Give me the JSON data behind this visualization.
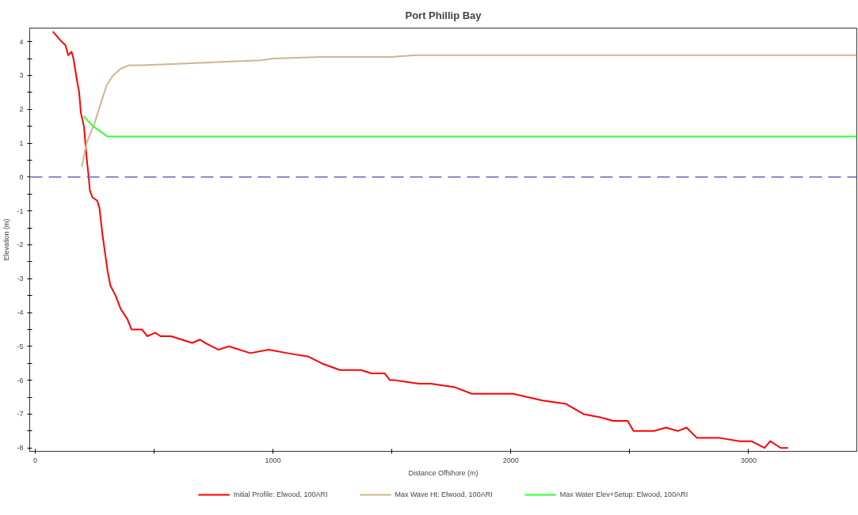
{
  "chart_data": {
    "type": "line",
    "title": "Port Phillip Bay",
    "xlabel": "Distance Offshore (m)",
    "ylabel": "Elevation (m)",
    "xlim": [
      -23,
      3455
    ],
    "ylim": [
      -8.1,
      4.4
    ],
    "xticks": [
      0,
      {
        "value": 500,
        "label": null
      },
      1000,
      {
        "value": 1500,
        "label": null
      },
      2000,
      {
        "value": 2500,
        "label": null
      },
      3000
    ],
    "yticks": [
      -8,
      {
        "value": -7.5,
        "label": null
      },
      -7,
      {
        "value": -6.5,
        "label": null
      },
      -6,
      {
        "value": -5.5,
        "label": null
      },
      -5,
      {
        "value": -4.5,
        "label": null
      },
      -4,
      {
        "value": -3.5,
        "label": null
      },
      -3,
      {
        "value": -2.5,
        "label": null
      },
      -2,
      {
        "value": -1.5,
        "label": null
      },
      -1,
      {
        "value": -0.5,
        "label": null
      },
      0,
      {
        "value": 0.5,
        "label": null
      },
      1,
      {
        "value": 1.5,
        "label": null
      },
      2,
      {
        "value": 2.5,
        "label": null
      },
      3,
      {
        "value": 3.5,
        "label": null
      },
      4
    ],
    "grid": false,
    "legend": "bottom",
    "marker": "none",
    "line_style": "solid",
    "ref_lines": [
      {
        "axis": "y",
        "value": 0,
        "label": null,
        "color": "#6666bb",
        "line_style": "dashed"
      }
    ],
    "series": [
      {
        "name": "Initial Profile: Elwood, 100ARI",
        "color": "#ff0000",
        "x": [
          74,
          111,
          127,
          139,
          153,
          161,
          177,
          185,
          192,
          205,
          216,
          225,
          230,
          241,
          261,
          270,
          283,
          305,
          316,
          338,
          360,
          388,
          405,
          449,
          471,
          505,
          527,
          571,
          616,
          660,
          693,
          715,
          771,
          815,
          904,
          982,
          1060,
          1148,
          1204,
          1281,
          1370,
          1414,
          1470,
          1492,
          1514,
          1614,
          1663,
          1761,
          1836,
          1910,
          2009,
          2133,
          2232,
          2306,
          2380,
          2430,
          2491,
          2516,
          2603,
          2652,
          2702,
          2739,
          2782,
          2875,
          2962,
          3011,
          3067,
          3091,
          3135,
          3166
        ],
        "values": [
          4.3,
          4.0,
          3.9,
          3.6,
          3.7,
          3.5,
          2.8,
          2.5,
          1.9,
          1.5,
          0.6,
          0.0,
          -0.4,
          -0.6,
          -0.7,
          -0.9,
          -1.7,
          -2.8,
          -3.2,
          -3.5,
          -3.9,
          -4.2,
          -4.5,
          -4.5,
          -4.7,
          -4.6,
          -4.7,
          -4.7,
          -4.8,
          -4.9,
          -4.8,
          -4.9,
          -5.1,
          -5.0,
          -5.2,
          -5.1,
          -5.2,
          -5.3,
          -5.5,
          -5.7,
          -5.7,
          -5.8,
          -5.8,
          -6.0,
          -6.0,
          -6.1,
          -6.1,
          -6.2,
          -6.4,
          -6.4,
          -6.4,
          -6.6,
          -6.7,
          -7.0,
          -7.1,
          -7.2,
          -7.2,
          -7.5,
          -7.5,
          -7.4,
          -7.5,
          -7.4,
          -7.7,
          -7.7,
          -7.8,
          -7.8,
          -8.0,
          -7.8,
          -8.0,
          -8.0
        ]
      },
      {
        "name": "Max Wave Ht: Elwood, 100ARI",
        "color": "#d2b48c",
        "x": [
          196,
          216,
          250,
          277,
          300,
          327,
          360,
          394,
          449,
          616,
          782,
          948,
          1000,
          1200,
          1500,
          1600,
          2000,
          2500,
          2800,
          3200,
          3455
        ],
        "values": [
          0.3,
          1.0,
          1.6,
          2.2,
          2.7,
          3.0,
          3.2,
          3.3,
          3.3,
          3.35,
          3.4,
          3.45,
          3.5,
          3.55,
          3.55,
          3.6,
          3.6,
          3.6,
          3.6,
          3.6,
          3.6
        ]
      },
      {
        "name": "Max Water Elev+Setup: Elwood, 100ARI",
        "color": "#33ff33",
        "x": [
          203,
          244,
          303,
          3455
        ],
        "values": [
          1.8,
          1.5,
          1.2,
          1.2
        ]
      }
    ]
  }
}
